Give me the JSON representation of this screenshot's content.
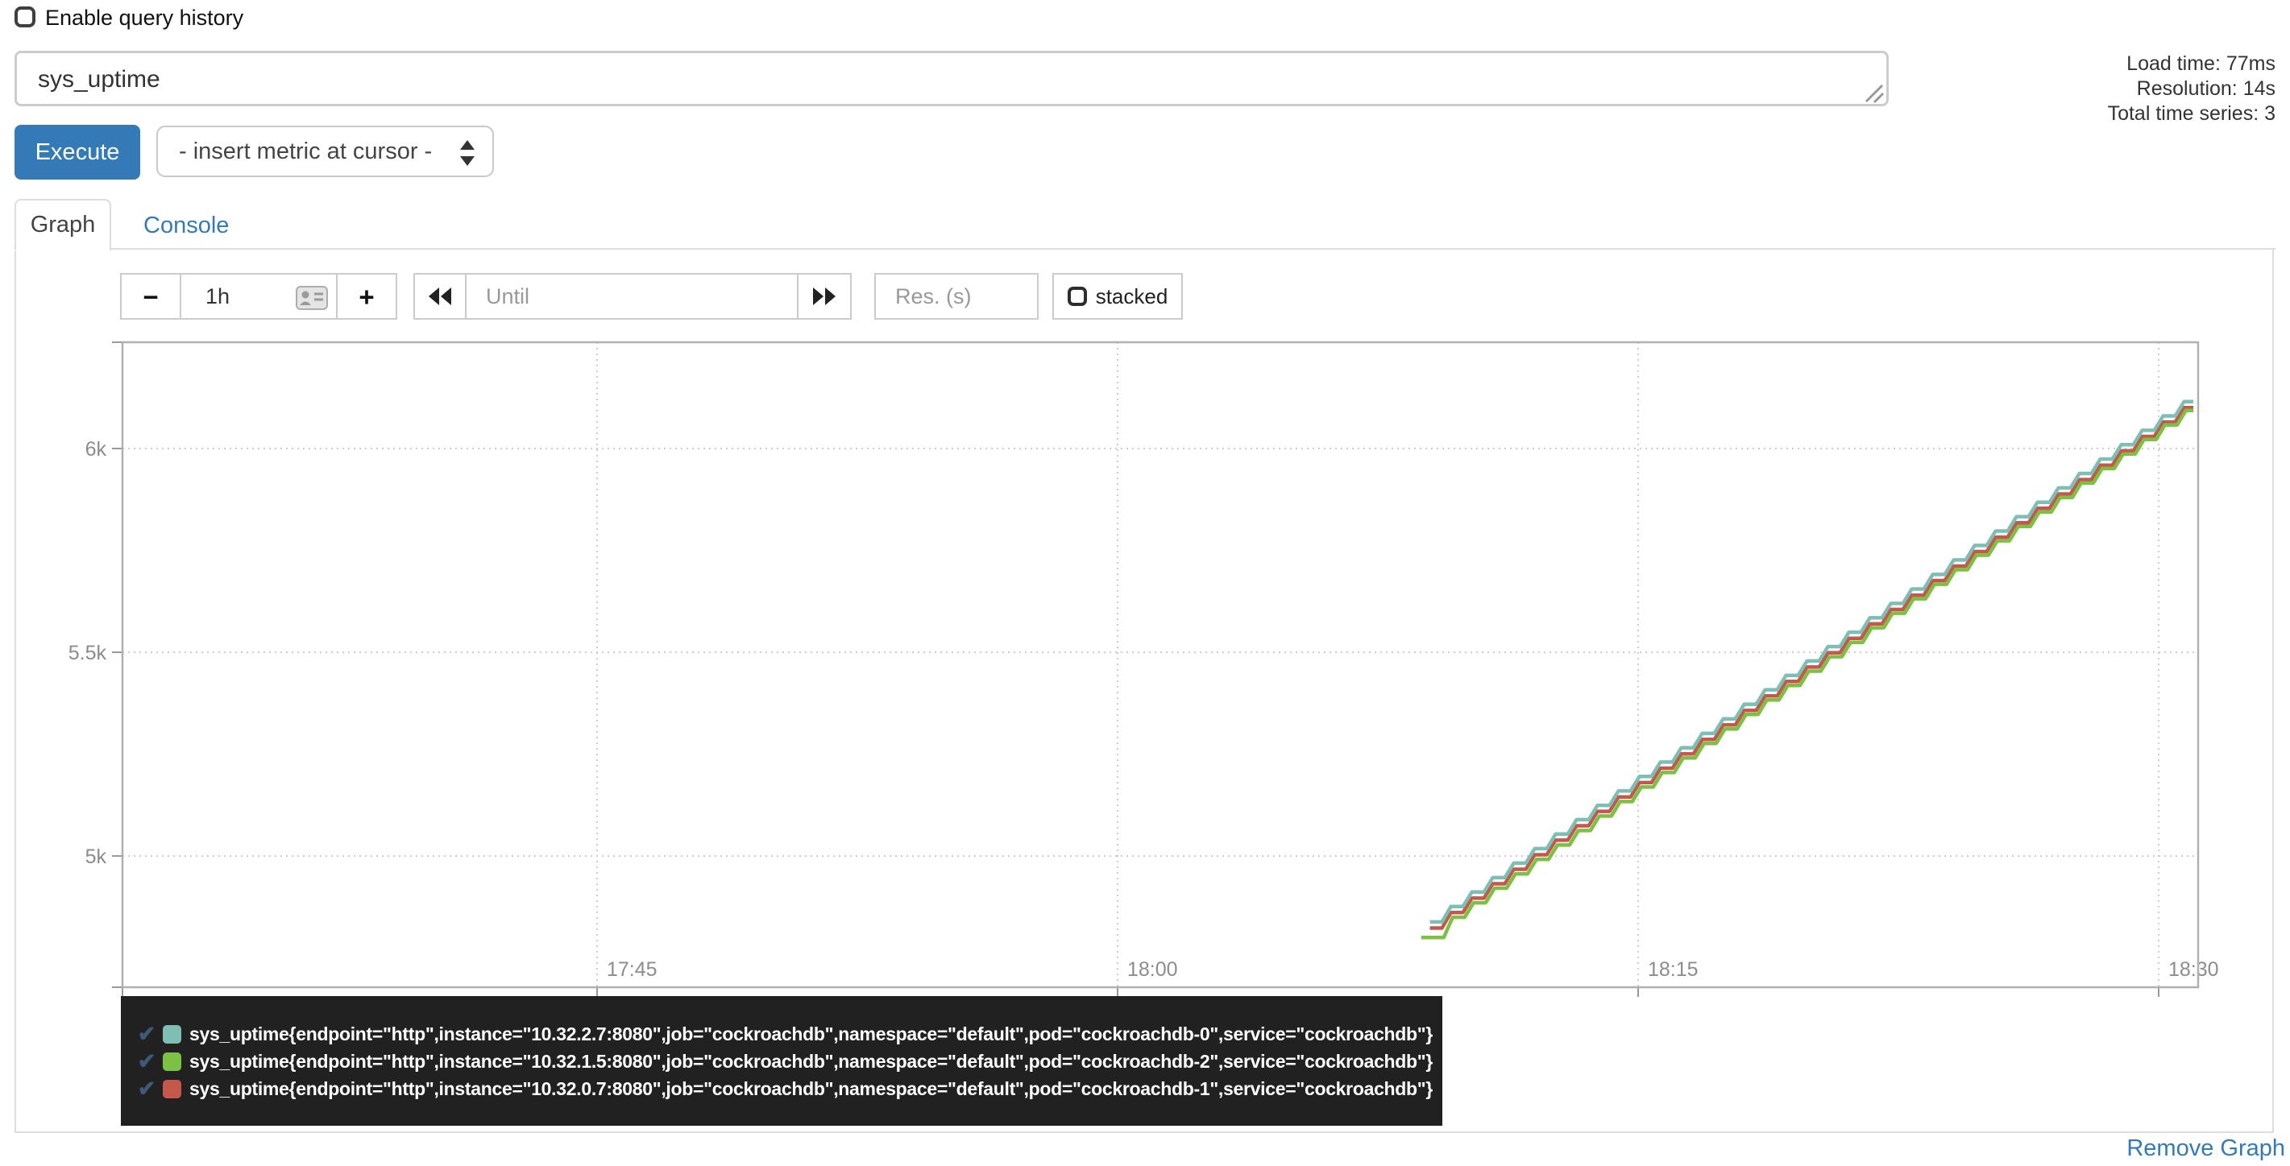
{
  "colors": {
    "accent": "#337ab7",
    "panel_border": "#dddddd",
    "input_border": "#cccccc",
    "plot_border": "#b0b0b0",
    "grid": "#cccccc",
    "tick": "#999999",
    "tick_label": "#8c8c8c",
    "legend_bg": "#212121",
    "legend_check": "#3e5a78",
    "series_teal": "#7ebfb5",
    "series_green": "#7cc143",
    "series_red": "#c4584a"
  },
  "header": {
    "enable_query_history_label": "Enable query history",
    "query_value": "sys_uptime",
    "stats": {
      "load_time": "Load time: 77ms",
      "resolution": "Resolution: 14s",
      "total_series": "Total time series: 3"
    }
  },
  "toolbar": {
    "execute_label": "Execute",
    "metric_select_value": "- insert metric at cursor -"
  },
  "tabs": {
    "graph_label": "Graph",
    "console_label": "Console"
  },
  "graph_controls": {
    "range_decrease_label": "−",
    "range_value": "1h",
    "range_increase_label": "+",
    "until_placeholder": "Until",
    "res_placeholder": "Res. (s)",
    "stacked_label": "stacked"
  },
  "chart_data": {
    "type": "line",
    "title": "",
    "xlabel": "",
    "ylabel": "",
    "grid": true,
    "legend_position": "bottom",
    "x_range": [
      "17:31",
      "18:31"
    ],
    "y_range": [
      4680,
      6260
    ],
    "x_ticks": [
      {
        "time": "17:45",
        "label": "17:45"
      },
      {
        "time": "18:00",
        "label": "18:00"
      },
      {
        "time": "18:15",
        "label": "18:15"
      },
      {
        "time": "18:30",
        "label": "18:30"
      }
    ],
    "y_ticks": [
      {
        "value": 6000,
        "label": "6k"
      },
      {
        "value": 5500,
        "label": "5.5k"
      },
      {
        "value": 5000,
        "label": "5k"
      }
    ],
    "series": [
      {
        "name": "sys_uptime{endpoint=\"http\",instance=\"10.32.2.7:8080\",job=\"cockroachdb\",namespace=\"default\",pod=\"cockroachdb-0\",service=\"cockroachdb\"}",
        "color": "#7ebfb5",
        "step_phase": 0,
        "points": [
          [
            "18:09",
            4830
          ],
          [
            "18:11",
            4947
          ],
          [
            "18:13",
            5065
          ],
          [
            "18:15",
            5182
          ],
          [
            "18:17",
            5299
          ],
          [
            "18:19",
            5417
          ],
          [
            "18:21",
            5534
          ],
          [
            "18:23",
            5651
          ],
          [
            "18:25",
            5769
          ],
          [
            "18:27",
            5886
          ],
          [
            "18:29",
            6003
          ],
          [
            "18:31",
            6120
          ]
        ]
      },
      {
        "name": "sys_uptime{endpoint=\"http\",instance=\"10.32.1.5:8080\",job=\"cockroachdb\",namespace=\"default\",pod=\"cockroachdb-2\",service=\"cockroachdb\"}",
        "color": "#7cc143",
        "step_phase": 13,
        "points": [
          [
            "18:08:45",
            4800
          ],
          [
            "18:09",
            4800
          ],
          [
            "18:11",
            4918
          ],
          [
            "18:13",
            5035
          ],
          [
            "18:15",
            5153
          ],
          [
            "18:17",
            5271
          ],
          [
            "18:19",
            5389
          ],
          [
            "18:21",
            5506
          ],
          [
            "18:23",
            5624
          ],
          [
            "18:25",
            5742
          ],
          [
            "18:27",
            5859
          ],
          [
            "18:29",
            5977
          ],
          [
            "18:31",
            6095
          ]
        ]
      },
      {
        "name": "sys_uptime{endpoint=\"http\",instance=\"10.32.0.7:8080\",job=\"cockroachdb\",namespace=\"default\",pod=\"cockroachdb-1\",service=\"cockroachdb\"}",
        "color": "#c4584a",
        "step_phase": 0,
        "points": [
          [
            "18:09",
            4815
          ],
          [
            "18:11",
            4932
          ],
          [
            "18:13",
            5050
          ],
          [
            "18:15",
            5167
          ],
          [
            "18:17",
            5284
          ],
          [
            "18:19",
            5402
          ],
          [
            "18:21",
            5519
          ],
          [
            "18:23",
            5636
          ],
          [
            "18:25",
            5754
          ],
          [
            "18:27",
            5871
          ],
          [
            "18:29",
            5988
          ],
          [
            "18:31",
            6105
          ]
        ]
      }
    ]
  },
  "legend": {
    "check_glyph": "✔"
  },
  "footer": {
    "remove_graph_label": "Remove Graph"
  }
}
